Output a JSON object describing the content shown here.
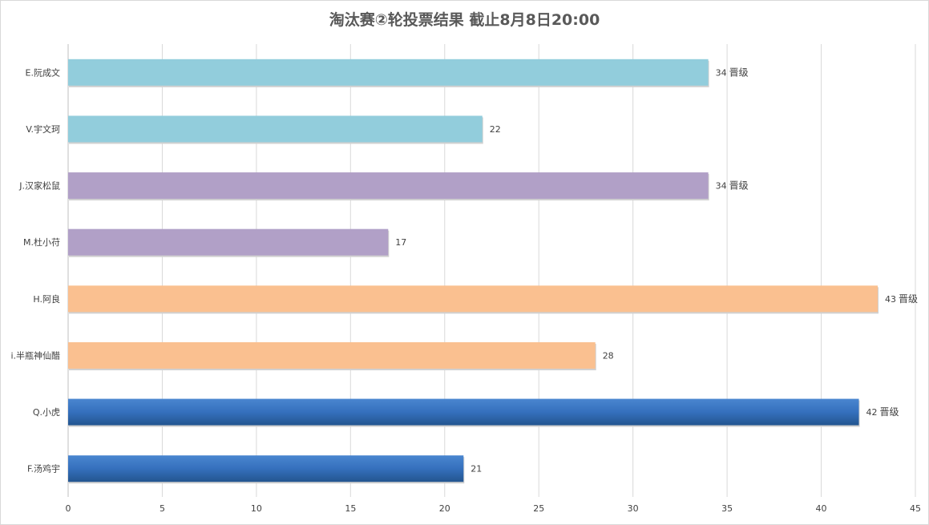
{
  "chart_data": {
    "type": "bar",
    "orientation": "horizontal",
    "title": "淘汰赛②轮投票结果  截止8月8日20:00",
    "categories": [
      "E.阮成文",
      "V.宇文珂",
      "J.汉家松鼠",
      "M.杜小苻",
      "H.阿良",
      "i.半瓶神仙醋",
      "Q.小虎",
      "F.汤鸡宇"
    ],
    "values": [
      34,
      22,
      34,
      17,
      43,
      28,
      42,
      21
    ],
    "notes": [
      "晋级",
      "",
      "晋级",
      "",
      "晋级",
      "",
      "晋级",
      ""
    ],
    "colors": [
      "#92cddc",
      "#92cddc",
      "#b1a0c7",
      "#b1a0c7",
      "#fac090",
      "#fac090",
      "#2e69b3",
      "#2e69b3"
    ],
    "xlim": [
      0,
      45
    ],
    "xticks": [
      0,
      5,
      10,
      15,
      20,
      25,
      30,
      35,
      40,
      45
    ],
    "grid": true,
    "legend": "none"
  }
}
